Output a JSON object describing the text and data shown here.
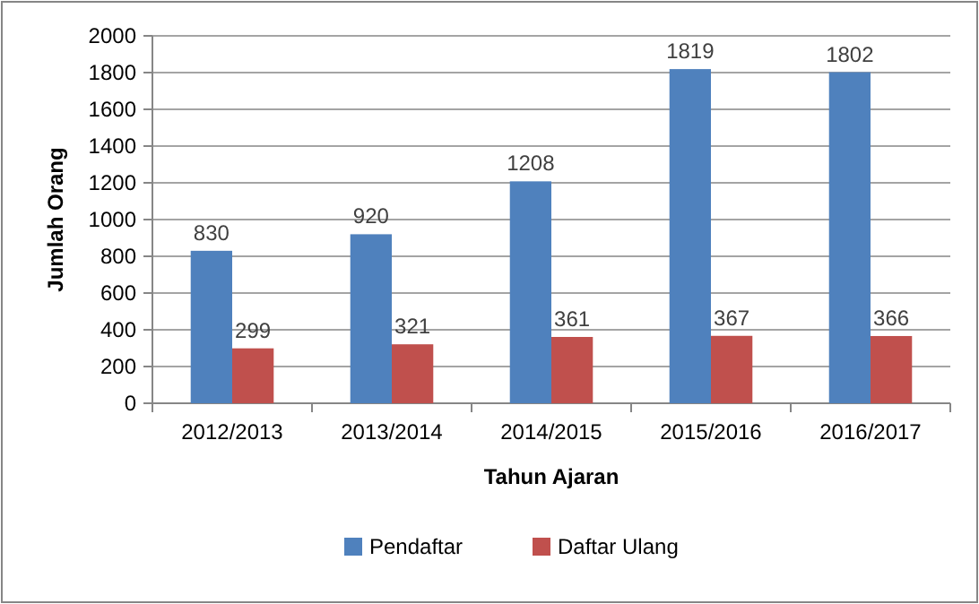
{
  "chart_data": {
    "type": "bar",
    "xlabel": "Tahun Ajaran",
    "ylabel": "Jumlah Orang",
    "categories": [
      "2012/2013",
      "2013/2014",
      "2014/2015",
      "2015/2016",
      "2016/2017"
    ],
    "series": [
      {
        "name": "Pendaftar",
        "color": "#4f81bd",
        "values": [
          830,
          920,
          1208,
          1819,
          1802
        ]
      },
      {
        "name": "Daftar Ulang",
        "color": "#c0504d",
        "values": [
          299,
          321,
          361,
          367,
          366
        ]
      }
    ],
    "ylim": [
      0,
      2000
    ],
    "yticks": [
      0,
      200,
      400,
      600,
      800,
      1000,
      1200,
      1400,
      1600,
      1800,
      2000
    ],
    "grid": "y",
    "legend": "bottom",
    "data_labels": true
  }
}
